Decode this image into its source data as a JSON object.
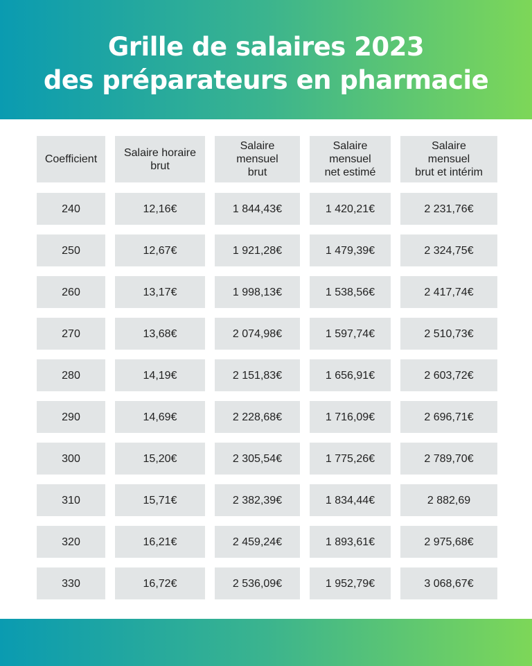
{
  "title": {
    "line1": "Grille de salaires 2023",
    "line2": "des préparateurs en pharmacie"
  },
  "colors": {
    "gradient_start": "#0a9bb1",
    "gradient_end": "#7dd758",
    "cell_bg": "#e2e5e6"
  },
  "table": {
    "headers": [
      "Coefficient",
      "Salaire horaire\nbrut",
      "Salaire\nmensuel\nbrut",
      "Salaire\nmensuel\nnet estimé",
      "Salaire\nmensuel\nbrut et intérim"
    ],
    "rows": [
      [
        "240",
        "12,16€",
        "1 844,43€",
        "1 420,21€",
        "2 231,76€"
      ],
      [
        "250",
        "12,67€",
        "1 921,28€",
        "1 479,39€",
        "2 324,75€"
      ],
      [
        "260",
        "13,17€",
        "1 998,13€",
        "1 538,56€",
        "2 417,74€"
      ],
      [
        "270",
        "13,68€",
        "2 074,98€",
        "1 597,74€",
        "2 510,73€"
      ],
      [
        "280",
        "14,19€",
        "2 151,83€",
        "1 656,91€",
        "2 603,72€"
      ],
      [
        "290",
        "14,69€",
        "2 228,68€",
        "1 716,09€",
        "2 696,71€"
      ],
      [
        "300",
        "15,20€",
        "2 305,54€",
        "1 775,26€",
        "2 789,70€"
      ],
      [
        "310",
        "15,71€",
        "2 382,39€",
        "1 834,44€",
        "2 882,69"
      ],
      [
        "320",
        "16,21€",
        "2 459,24€",
        "1 893,61€",
        "2 975,68€"
      ],
      [
        "330",
        "16,72€",
        "2 536,09€",
        "1 952,79€",
        "3 068,67€"
      ]
    ]
  }
}
